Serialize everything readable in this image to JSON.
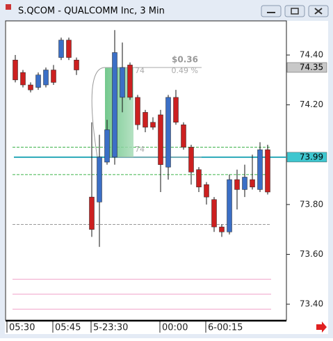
{
  "window_title": "S.QCOM - QUALCOMM Inc, 3 Min",
  "chart_data": {
    "type": "candlestick",
    "categories": [
      "05:30",
      null,
      null,
      null,
      null,
      null,
      "05:45",
      null,
      null,
      null,
      null,
      "5-23:30",
      null,
      null,
      null,
      null,
      null,
      null,
      null,
      null,
      "00:00",
      null,
      null,
      null,
      null,
      null,
      "6-00:15",
      null,
      null,
      null,
      null,
      null,
      null,
      null
    ],
    "open": [
      74.38,
      74.33,
      74.28,
      74.27,
      74.28,
      74.34,
      74.39,
      74.46,
      74.38,
      null,
      73.83,
      73.81,
      73.97,
      73.99,
      74.23,
      74.36,
      74.23,
      74.17,
      74.13,
      74.16,
      73.95,
      74.23,
      74.12,
      74.03,
      73.94,
      73.88,
      73.82,
      73.71,
      73.69,
      73.9,
      73.86,
      73.9,
      73.86,
      74.02
    ],
    "high": [
      74.4,
      74.34,
      74.29,
      74.33,
      74.35,
      74.36,
      74.47,
      74.47,
      74.39,
      null,
      74.13,
      74.08,
      74.14,
      74.5,
      74.45,
      74.37,
      74.24,
      74.18,
      74.15,
      74.18,
      74.24,
      74.26,
      74.13,
      74.04,
      73.95,
      73.89,
      73.83,
      73.72,
      73.92,
      73.94,
      73.96,
      74.0,
      74.05,
      74.04
    ],
    "low": [
      74.29,
      74.27,
      74.25,
      74.26,
      74.27,
      74.28,
      74.38,
      74.38,
      74.32,
      null,
      73.67,
      73.63,
      73.96,
      73.96,
      74.17,
      74.22,
      74.1,
      74.09,
      74.1,
      73.85,
      73.9,
      74.12,
      74.02,
      73.88,
      73.85,
      73.8,
      73.69,
      73.67,
      73.68,
      73.78,
      73.83,
      73.86,
      73.85,
      73.84
    ],
    "close": [
      74.3,
      74.28,
      74.26,
      74.32,
      74.34,
      74.29,
      74.46,
      74.39,
      74.34,
      null,
      73.7,
      73.99,
      74.1,
      74.41,
      74.35,
      74.23,
      74.12,
      74.11,
      74.11,
      73.96,
      74.23,
      74.13,
      74.03,
      73.93,
      73.87,
      73.83,
      73.71,
      73.69,
      73.9,
      73.86,
      73.91,
      73.87,
      74.02,
      73.85
    ],
    "up_color": "#3b6fc6",
    "down_color": "#cc2020",
    "ylim": [
      73.336,
      74.537
    ],
    "yticks": [
      {
        "value": 73.4,
        "label": "73.40"
      },
      {
        "value": 73.6,
        "label": "73.60"
      },
      {
        "value": 73.8,
        "label": "73.80"
      },
      {
        "value": 74.2,
        "label": "74.20"
      },
      {
        "value": 74.4,
        "label": "74.40"
      }
    ],
    "price_markers": [
      {
        "value": 74.35,
        "color": "#c8c8c8"
      },
      {
        "value": 73.99,
        "color": "#3ec6cf"
      }
    ],
    "levels": [
      {
        "value": 73.99,
        "color": "#2aa8b8",
        "dash": false
      },
      {
        "value": 74.03,
        "color": "#3cb34a",
        "dash": true
      },
      {
        "value": 73.92,
        "color": "#3cb34a",
        "dash": true
      },
      {
        "value": 73.72,
        "color": "#999999",
        "dash": true
      },
      {
        "value": 73.5,
        "color": "#f0a0c8",
        "dash": false
      },
      {
        "value": 73.44,
        "color": "#f0a0c8",
        "dash": false
      },
      {
        "value": 73.38,
        "color": "#f0a0c8",
        "dash": false
      }
    ],
    "measure": {
      "from": 73.99,
      "to": 74.35,
      "start_index": 12,
      "end_index": 15,
      "change_label": "$0.36",
      "percent_label": "0.49 %",
      "start_label": "74",
      "end_label": "74"
    }
  }
}
